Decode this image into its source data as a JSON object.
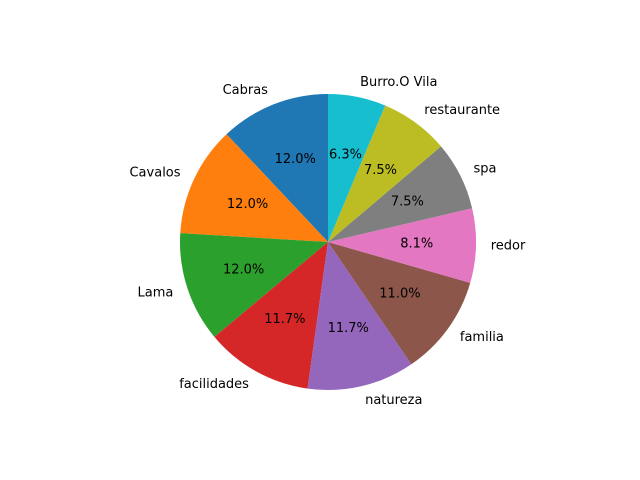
{
  "chart_data": {
    "type": "pie",
    "categories": [
      "Cabras",
      "Cavalos",
      "Lama",
      "facilidades",
      "natureza",
      "familia",
      "redor",
      "spa",
      "restaurante",
      "Burro.O Vila"
    ],
    "values": [
      12.0,
      12.0,
      12.0,
      11.7,
      11.7,
      11.0,
      8.1,
      7.5,
      7.5,
      6.3
    ],
    "value_labels": [
      "12.0%",
      "12.0%",
      "12.0%",
      "11.7%",
      "11.7%",
      "11.0%",
      "8.1%",
      "7.5%",
      "7.5%",
      "6.3%"
    ],
    "colors": [
      "#1f77b4",
      "#ff7f0e",
      "#2ca02c",
      "#d62728",
      "#9467bd",
      "#8c564b",
      "#e377c2",
      "#7f7f7f",
      "#bcbd22",
      "#17becf"
    ],
    "start_angle_deg": 90,
    "direction": "counterclockwise"
  }
}
